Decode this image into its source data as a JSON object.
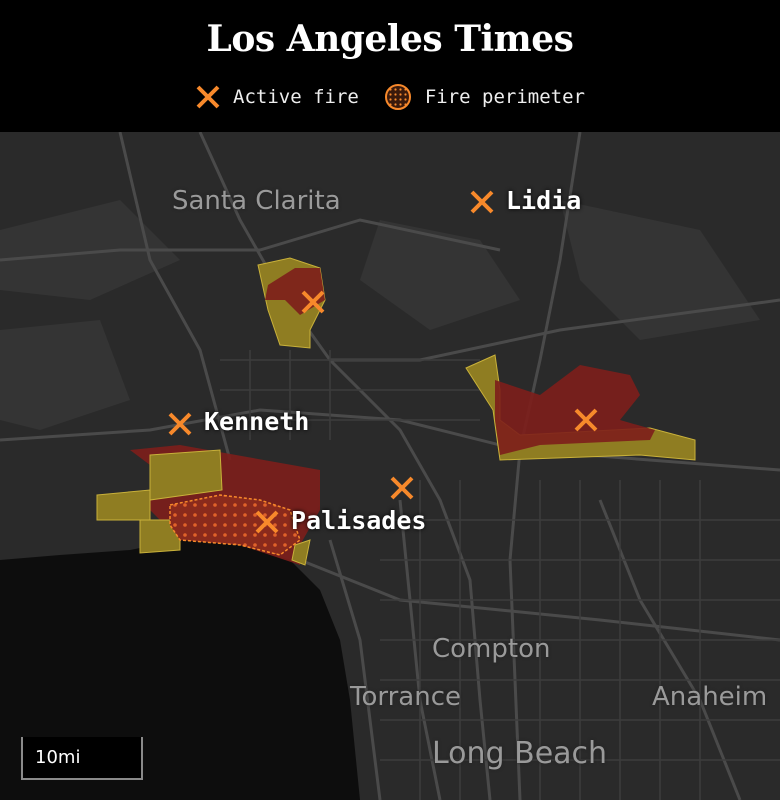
{
  "header": {
    "logo": "Los Angeles Times",
    "legend": [
      {
        "label": "Active fire",
        "icon": "x-mark-icon"
      },
      {
        "label": "Fire perimeter",
        "icon": "dotted-circle-icon"
      }
    ]
  },
  "map": {
    "place_labels": [
      "Santa Clarita",
      "Compton",
      "Torrance",
      "Long Beach",
      "Anaheim"
    ],
    "fires": [
      "Lidia",
      "Kenneth",
      "Palisades"
    ],
    "scale": "10mi",
    "colors": {
      "active_fire": "#f7892b",
      "evacuation_order": "#7d1e1b",
      "evacuation_warning": "#8f7d22",
      "land": "#2a2a2a",
      "ocean": "#0d0d0d",
      "roads": "#4a4a4a"
    }
  }
}
